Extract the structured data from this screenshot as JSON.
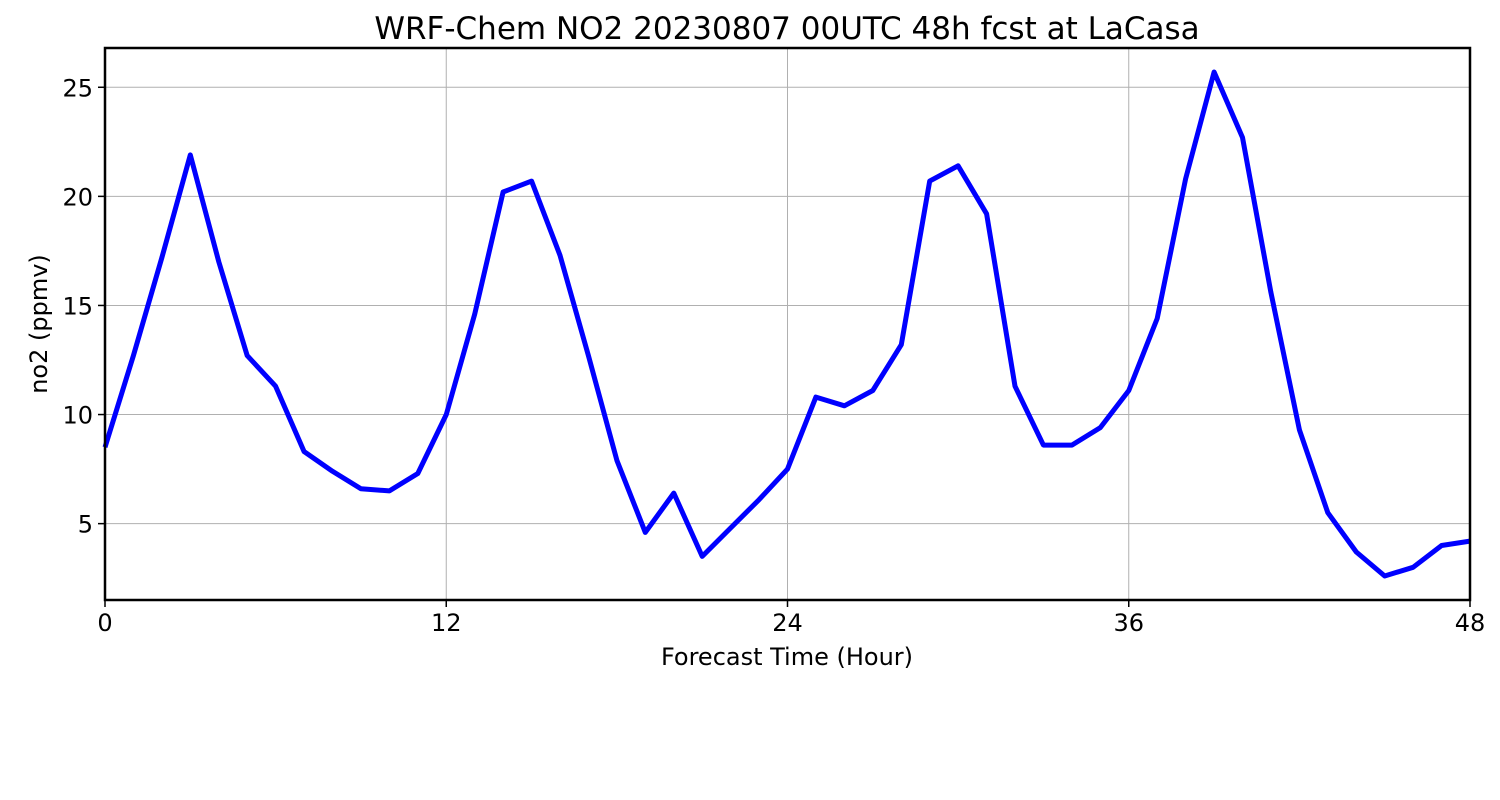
{
  "chart_data": {
    "type": "line",
    "title": "WRF-Chem NO2  20230807 00UTC 48h fcst at LaCasa",
    "xlabel": "Forecast Time (Hour)",
    "ylabel": "no2  (ppmv)",
    "xlim": [
      0,
      48
    ],
    "ylim": [
      1.5,
      26.8
    ],
    "xticks": [
      0,
      12,
      24,
      36,
      48
    ],
    "xtick_labels": [
      "0",
      "12",
      "24",
      "36",
      "48"
    ],
    "yticks": [
      5,
      10,
      15,
      20,
      25
    ],
    "ytick_labels": [
      "5",
      "10",
      "15",
      "20",
      "25"
    ],
    "grid": true,
    "line_color": "#0000ff",
    "series": [
      {
        "x": [
          0,
          1,
          2,
          3,
          4,
          5,
          6,
          7,
          8,
          9,
          10,
          11,
          12,
          13,
          14,
          15,
          16,
          17,
          18,
          19,
          20,
          21,
          22,
          23,
          24,
          25,
          26,
          27,
          28,
          29,
          30,
          31,
          32,
          33,
          34,
          35,
          36,
          37,
          38,
          39,
          40,
          41,
          42,
          43,
          44,
          45,
          46,
          47,
          48
        ],
        "values": [
          8.5,
          12.7,
          17.2,
          21.9,
          17.0,
          12.7,
          11.3,
          8.3,
          7.4,
          6.6,
          6.5,
          7.3,
          10.0,
          14.6,
          20.2,
          20.7,
          17.3,
          12.7,
          7.9,
          4.6,
          6.4,
          3.5,
          4.8,
          6.1,
          7.5,
          10.8,
          10.4,
          11.1,
          13.2,
          20.7,
          21.4,
          19.2,
          11.3,
          8.6,
          8.6,
          9.4,
          11.1,
          14.4,
          20.8,
          25.7,
          22.7,
          15.6,
          9.3,
          5.5,
          3.7,
          2.6,
          3.0,
          4.0,
          4.2
        ]
      }
    ]
  }
}
